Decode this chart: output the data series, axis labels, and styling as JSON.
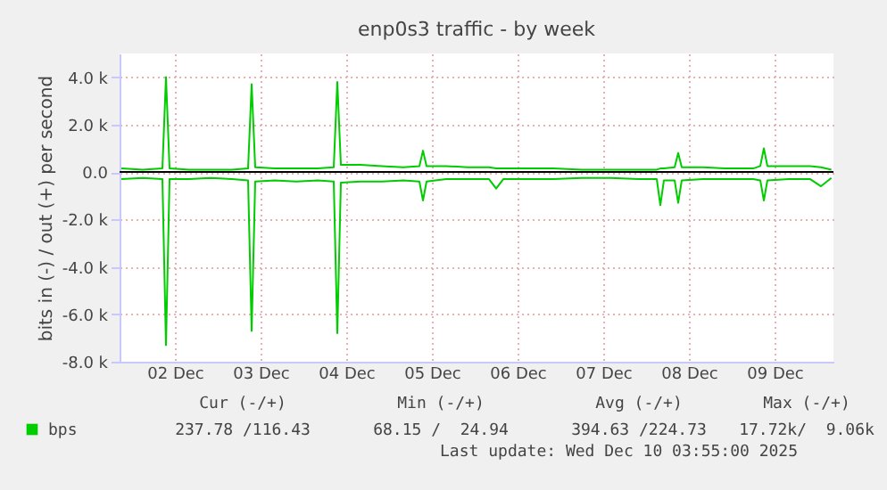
{
  "chart_data": {
    "type": "line",
    "title": "enp0s3 traffic - by week",
    "ylabel": "bits in (-) / out (+) per second",
    "x": [
      "2025-12-01T21:00",
      "2025-12-02T03:00",
      "2025-12-02T08:30",
      "2025-12-02T09:30",
      "2025-12-02T10:30",
      "2025-12-02T16:00",
      "2025-12-02T22:00",
      "2025-12-03T04:00",
      "2025-12-03T08:30",
      "2025-12-03T09:30",
      "2025-12-03T10:30",
      "2025-12-03T16:00",
      "2025-12-03T22:00",
      "2025-12-04T04:00",
      "2025-12-04T08:30",
      "2025-12-04T09:30",
      "2025-12-04T10:30",
      "2025-12-04T16:00",
      "2025-12-04T22:00",
      "2025-12-05T04:00",
      "2025-12-05T08:30",
      "2025-12-05T09:30",
      "2025-12-05T10:30",
      "2025-12-05T16:00",
      "2025-12-05T22:00",
      "2025-12-06T04:00",
      "2025-12-06T06:00",
      "2025-12-06T08:00",
      "2025-12-06T16:00",
      "2025-12-06T22:00",
      "2025-12-07T06:00",
      "2025-12-07T14:00",
      "2025-12-07T22:00",
      "2025-12-08T03:00",
      "2025-12-08T04:00",
      "2025-12-08T05:00",
      "2025-12-08T08:00",
      "2025-12-08T09:00",
      "2025-12-08T10:00",
      "2025-12-08T16:00",
      "2025-12-08T22:00",
      "2025-12-09T06:00",
      "2025-12-09T08:00",
      "2025-12-09T09:00",
      "2025-12-09T10:00",
      "2025-12-09T16:00",
      "2025-12-09T22:00",
      "2025-12-10T01:00",
      "2025-12-10T03:55"
    ],
    "series": [
      {
        "name": "bps",
        "color": "#00cc00",
        "values": [
          150,
          100,
          150,
          4000,
          150,
          100,
          100,
          100,
          150,
          3700,
          200,
          150,
          150,
          150,
          200,
          3800,
          300,
          300,
          250,
          200,
          250,
          900,
          250,
          250,
          200,
          200,
          150,
          150,
          150,
          150,
          100,
          100,
          100,
          100,
          150,
          150,
          200,
          800,
          200,
          200,
          150,
          150,
          250,
          1000,
          250,
          250,
          250,
          200,
          100
        ]
      },
      {
        "color": "#00cc00",
        "values": [
          -300,
          -250,
          -300,
          -7300,
          -300,
          -300,
          -250,
          -300,
          -350,
          -6700,
          -400,
          -350,
          -400,
          -350,
          -400,
          -6800,
          -450,
          -400,
          -400,
          -350,
          -400,
          -1200,
          -400,
          -300,
          -300,
          -300,
          -700,
          -300,
          -300,
          -300,
          -250,
          -250,
          -300,
          -300,
          -1400,
          -350,
          -350,
          -1300,
          -350,
          -300,
          -300,
          -300,
          -350,
          -1200,
          -350,
          -300,
          -300,
          -600,
          -250
        ]
      }
    ],
    "xlim": [
      "2025-12-01T20:30",
      "2025-12-10T04:30"
    ],
    "xticks": [
      {
        "value": "2025-12-02T12:00",
        "label": "02 Dec"
      },
      {
        "value": "2025-12-03T12:00",
        "label": "03 Dec"
      },
      {
        "value": "2025-12-04T12:00",
        "label": "04 Dec"
      },
      {
        "value": "2025-12-05T12:00",
        "label": "05 Dec"
      },
      {
        "value": "2025-12-06T12:00",
        "label": "06 Dec"
      },
      {
        "value": "2025-12-07T12:00",
        "label": "07 Dec"
      },
      {
        "value": "2025-12-08T12:00",
        "label": "08 Dec"
      },
      {
        "value": "2025-12-09T12:00",
        "label": "09 Dec"
      }
    ],
    "ylim": [
      -8000,
      5000
    ],
    "yticks": [
      {
        "value": 4000,
        "label": "4.0 k"
      },
      {
        "value": 2000,
        "label": "2.0 k"
      },
      {
        "value": 0,
        "label": "0.0"
      },
      {
        "value": -2000,
        "label": "-2.0 k"
      },
      {
        "value": -4000,
        "label": "-4.0 k"
      },
      {
        "value": -6000,
        "label": "-6.0 k"
      },
      {
        "value": -8000,
        "label": "-8.0 k"
      }
    ],
    "ref_lines": [
      {
        "axis": "y",
        "value": 0,
        "color": "#000000"
      }
    ],
    "grid": true,
    "legend": "bottom",
    "annotations": [
      "Cur (-/+)",
      "Min (-/+)",
      "Avg (-/+)",
      "Max (-/+)",
      "237.78 /116.43",
      "68.15 /  24.94",
      "394.63 /224.73",
      "17.72k/  9.06k",
      "Last update: Wed Dec 10 03:55:00 2025"
    ]
  }
}
